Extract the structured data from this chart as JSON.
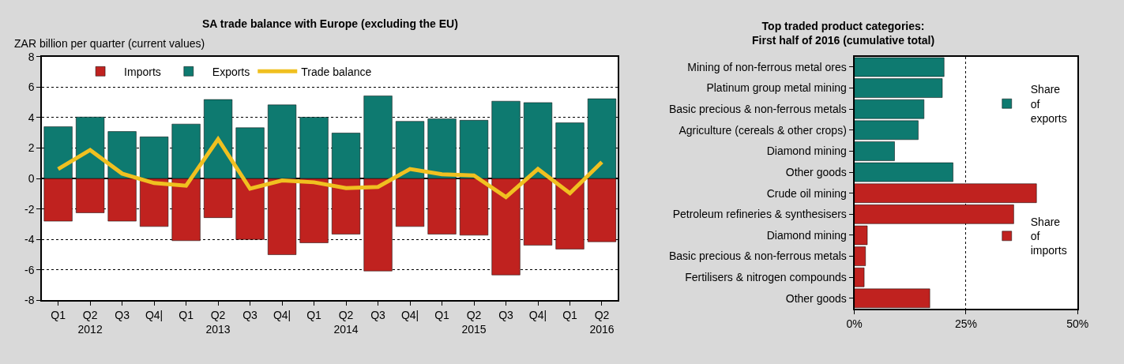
{
  "chart_data": [
    {
      "type": "bar",
      "title": "SA trade balance with Europe (excluding the EU)",
      "ylabel": "ZAR billion per quarter (current values)",
      "categories": [
        "Q1",
        "Q2\n2012",
        "Q3",
        "Q4|",
        "Q1",
        "Q2\n2013",
        "Q3",
        "Q4|",
        "Q1",
        "Q2\n2014",
        "Q3",
        "Q4|",
        "Q1",
        "Q2\n2015",
        "Q3",
        "Q4|",
        "Q1",
        "Q2\n2016"
      ],
      "series": [
        {
          "name": "Imports",
          "color": "#c0221f",
          "values": [
            -2.8,
            -2.25,
            -2.8,
            -3.15,
            -4.08,
            -2.57,
            -4.0,
            -5.0,
            -4.22,
            -3.65,
            -6.07,
            -3.15,
            -3.65,
            -3.72,
            -6.33,
            -4.38,
            -4.63,
            -4.15
          ]
        },
        {
          "name": "Exports",
          "color": "#0e7a70",
          "values": [
            3.4,
            4.03,
            3.08,
            2.73,
            3.57,
            5.18,
            3.33,
            4.83,
            4.02,
            2.98,
            5.42,
            3.75,
            3.92,
            3.82,
            5.07,
            4.98,
            3.65,
            5.23
          ]
        },
        {
          "name": "Trade balance",
          "type": "line",
          "color": "#f0c020",
          "values": [
            0.62,
            1.87,
            0.32,
            -0.3,
            -0.47,
            2.58,
            -0.67,
            -0.13,
            -0.25,
            -0.63,
            -0.55,
            0.62,
            0.28,
            0.2,
            -1.22,
            0.62,
            -0.97,
            1.08
          ]
        }
      ],
      "stacked": true,
      "ylim": [
        -8,
        8
      ],
      "yticks": [
        -8,
        -6,
        -4,
        -2,
        0,
        2,
        4,
        6,
        8
      ],
      "grid": "y",
      "legend": "top"
    },
    {
      "type": "bar",
      "orientation": "horizontal",
      "title": "Top traded product categories:\nFirst half of 2016 (cumulative total)",
      "categories": [
        "Mining of non-ferrous metal ores",
        "Platinum group metal mining",
        "Basic precious & non-ferrous metals",
        "Agriculture (cereals & other crops)",
        "Diamond mining",
        "Other goods",
        "Crude oil mining",
        "Petroleum refineries & synthesisers",
        "Diamond mining",
        "Basic precious & non-ferrous metals",
        "Fertilisers & nitrogen compounds",
        "Other goods"
      ],
      "series": [
        {
          "name": "Share of exports",
          "color": "#0e7a70",
          "values": [
            20.1,
            19.7,
            15.6,
            14.3,
            9.0,
            22.1,
            null,
            null,
            null,
            null,
            null,
            null
          ]
        },
        {
          "name": "Share of imports",
          "color": "#c0221f",
          "values": [
            null,
            null,
            null,
            null,
            null,
            null,
            40.8,
            35.7,
            2.9,
            2.5,
            2.2,
            16.9
          ]
        }
      ],
      "xlim": [
        0,
        50
      ],
      "xticks": [
        {
          "value": 0,
          "label": "0%"
        },
        {
          "value": 25,
          "label": "25%"
        },
        {
          "value": 50,
          "label": "50%"
        }
      ],
      "grid": "x",
      "legend": "right"
    }
  ]
}
